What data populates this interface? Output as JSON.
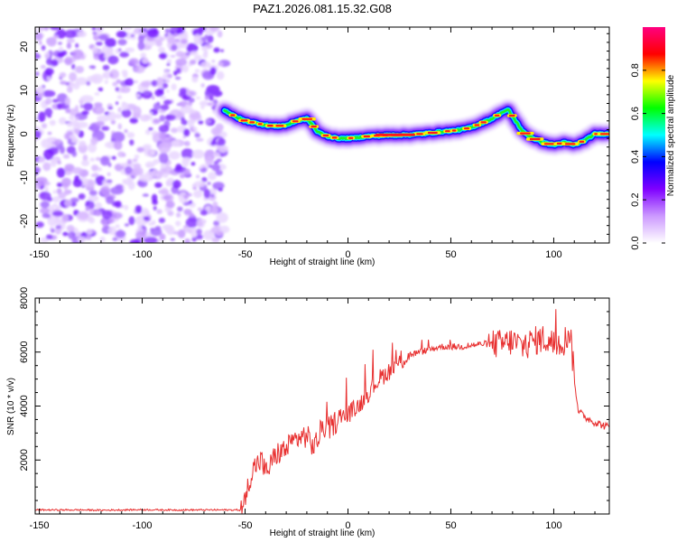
{
  "title": "PAZ1.2026.081.15.32.G08",
  "chart_data": [
    {
      "type": "heatmap",
      "name": "spectrogram",
      "xlabel": "Height of straight line (km)",
      "ylabel": "Frequency (Hz)",
      "xlim": [
        -152,
        127
      ],
      "ylim": [
        -25,
        24.5
      ],
      "xticks": [
        -150,
        -100,
        -50,
        0,
        50,
        100
      ],
      "yticks": [
        -20,
        -10,
        0,
        10,
        20
      ],
      "noise_region_x": [
        -152,
        -60
      ],
      "signal_region_x": [
        -60,
        127
      ],
      "ridge": {
        "x": [
          -60,
          -55,
          -50,
          -45,
          -40,
          -35,
          -30,
          -25,
          -20,
          -17,
          -15,
          -10,
          -5,
          0,
          5,
          10,
          20,
          30,
          40,
          45,
          50,
          55,
          60,
          65,
          70,
          75,
          78,
          80,
          85,
          90,
          95,
          100,
          105,
          110,
          115,
          120,
          127
        ],
        "y": [
          5.5,
          4.0,
          3.0,
          2.5,
          2.0,
          1.8,
          2.0,
          3.0,
          3.5,
          2.0,
          0.5,
          -0.5,
          -1.0,
          -1.0,
          -0.8,
          -0.5,
          -0.3,
          -0.2,
          0.2,
          0.5,
          0.7,
          1.0,
          1.5,
          2.5,
          3.5,
          5.0,
          5.5,
          4.0,
          0.5,
          -1.0,
          -2.0,
          -2.5,
          -2.0,
          -2.5,
          -1.5,
          0.0,
          0.0
        ]
      },
      "colorbar": {
        "label": "Normalized spectral amplitude",
        "ticks": [
          "0.0",
          "0.2",
          "0.4",
          "0.6",
          "0.8"
        ],
        "tick_values": [
          0.0,
          0.2,
          0.4,
          0.6,
          0.8
        ],
        "range": [
          0,
          1
        ],
        "colors": [
          "#ffffff",
          "#cc99ff",
          "#7f00ff",
          "#0000ff",
          "#00ffff",
          "#00ff00",
          "#ffff00",
          "#ff0000",
          "#ff0080"
        ]
      }
    },
    {
      "type": "line",
      "name": "snr",
      "xlabel": "Height of straight line (km)",
      "ylabel": "SNR (10 * v/v)",
      "xlim": [
        -152,
        127
      ],
      "ylim": [
        0,
        8000
      ],
      "xticks": [
        -150,
        -100,
        -50,
        0,
        50,
        100
      ],
      "yticks": [
        2000,
        4000,
        6000,
        8000
      ],
      "color": "#e83030",
      "series": [
        {
          "name": "SNR",
          "x": [
            -152,
            -140,
            -130,
            -120,
            -110,
            -100,
            -90,
            -80,
            -70,
            -60,
            -55,
            -52,
            -50,
            -48,
            -45,
            -42,
            -40,
            -35,
            -30,
            -25,
            -20,
            -17,
            -15,
            -12,
            -10,
            -5,
            0,
            5,
            10,
            15,
            20,
            25,
            30,
            35,
            40,
            45,
            50,
            55,
            60,
            65,
            70,
            75,
            80,
            85,
            90,
            95,
            100,
            105,
            108,
            110,
            112,
            115,
            120,
            127
          ],
          "y": [
            150,
            150,
            150,
            140,
            150,
            160,
            150,
            150,
            150,
            150,
            150,
            150,
            400,
            1300,
            1800,
            2000,
            1500,
            2200,
            2400,
            2800,
            2900,
            2500,
            2700,
            3300,
            3100,
            3500,
            3700,
            4000,
            4500,
            5000,
            5300,
            5600,
            5900,
            6000,
            6100,
            6200,
            6200,
            6200,
            6250,
            6300,
            6300,
            6300,
            6400,
            6200,
            6400,
            6500,
            6300,
            6400,
            6800,
            5000,
            3800,
            3600,
            3400,
            3200
          ]
        }
      ]
    }
  ]
}
